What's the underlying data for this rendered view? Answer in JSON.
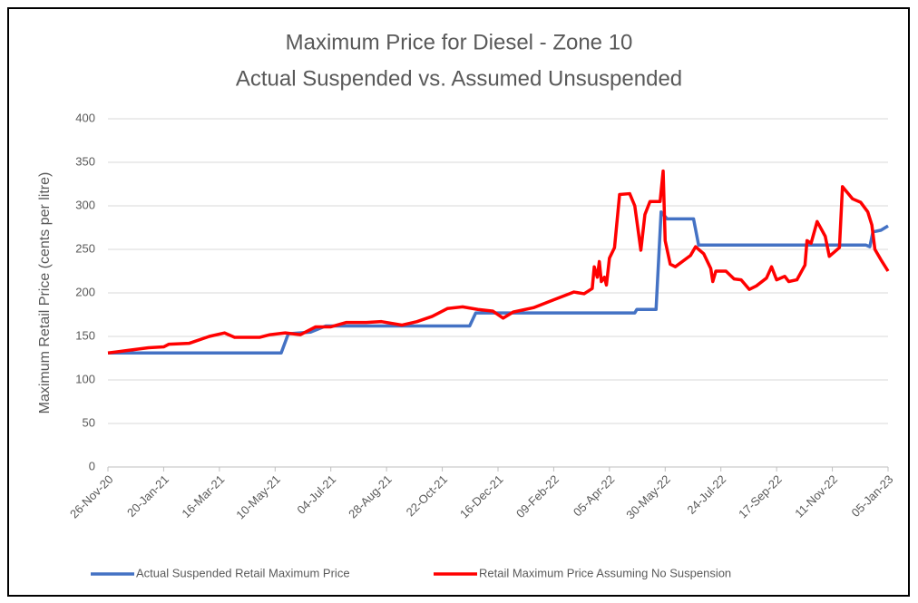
{
  "chart_data": {
    "type": "line",
    "title": "Maximum Price for Diesel - Zone 10",
    "subtitle": "Actual Suspended vs. Assumed Unsuspended",
    "y_label": "Maximum Retail Price (cents per litre)",
    "ylim": [
      0,
      400
    ],
    "yticks": [
      0,
      50,
      100,
      150,
      200,
      250,
      300,
      350,
      400
    ],
    "grid": true,
    "legend": "bottom",
    "xlim": [
      "2020-11-26",
      "2023-01-05"
    ],
    "xticks": [
      {
        "value": "2020-11-26",
        "label": "26-Nov-20"
      },
      {
        "value": "2021-01-20",
        "label": "20-Jan-21"
      },
      {
        "value": "2021-03-16",
        "label": "16-Mar-21"
      },
      {
        "value": "2021-05-10",
        "label": "10-May-21"
      },
      {
        "value": "2021-07-04",
        "label": "04-Jul-21"
      },
      {
        "value": "2021-08-28",
        "label": "28-Aug-21"
      },
      {
        "value": "2021-10-22",
        "label": "22-Oct-21"
      },
      {
        "value": "2021-12-16",
        "label": "16-Dec-21"
      },
      {
        "value": "2022-02-09",
        "label": "09-Feb-22"
      },
      {
        "value": "2022-04-05",
        "label": "05-Apr-22"
      },
      {
        "value": "2022-05-30",
        "label": "30-May-22"
      },
      {
        "value": "2022-07-24",
        "label": "24-Jul-22"
      },
      {
        "value": "2022-09-17",
        "label": "17-Sep-22"
      },
      {
        "value": "2022-11-11",
        "label": "11-Nov-22"
      },
      {
        "value": "2023-01-05",
        "label": "05-Jan-23"
      }
    ],
    "series": [
      {
        "name": "Actual Suspended Retail Maximum Price",
        "color": "#4472c4",
        "x": [
          "2020-11-26",
          "2021-05-16",
          "2021-05-23",
          "2021-06-14",
          "2021-06-29",
          "2021-11-18",
          "2021-11-24",
          "2022-04-30",
          "2022-05-02",
          "2022-05-21",
          "2022-05-26",
          "2022-06-01",
          "2022-06-27",
          "2022-07-02",
          "2022-12-14",
          "2022-12-18",
          "2022-12-21",
          "2022-12-29",
          "2023-01-05"
        ],
        "values": [
          131,
          131,
          153,
          155,
          162,
          162,
          177,
          177,
          181,
          181,
          293,
          285,
          285,
          255,
          255,
          253,
          270,
          272,
          277
        ]
      },
      {
        "name": "Retail Maximum Price Assuming No Suspension",
        "color": "#ff0000",
        "x": [
          "2020-11-26",
          "2020-12-16",
          "2021-01-05",
          "2021-01-20",
          "2021-01-25",
          "2021-02-14",
          "2021-03-06",
          "2021-03-21",
          "2021-03-31",
          "2021-04-25",
          "2021-05-05",
          "2021-05-20",
          "2021-06-04",
          "2021-06-19",
          "2021-07-04",
          "2021-07-19",
          "2021-08-08",
          "2021-08-23",
          "2021-09-12",
          "2021-09-27",
          "2021-10-12",
          "2021-10-27",
          "2021-11-11",
          "2021-11-26",
          "2021-12-11",
          "2021-12-21",
          "2021-12-31",
          "2022-01-20",
          "2022-02-09",
          "2022-03-01",
          "2022-03-11",
          "2022-03-19",
          "2022-03-21",
          "2022-03-24",
          "2022-03-26",
          "2022-03-28",
          "2022-03-31",
          "2022-04-02",
          "2022-04-05",
          "2022-04-10",
          "2022-04-15",
          "2022-04-25",
          "2022-04-30",
          "2022-05-06",
          "2022-05-10",
          "2022-05-15",
          "2022-05-25",
          "2022-05-28",
          "2022-05-30",
          "2022-06-04",
          "2022-06-09",
          "2022-06-24",
          "2022-06-29",
          "2022-07-07",
          "2022-07-14",
          "2022-07-16",
          "2022-07-19",
          "2022-07-29",
          "2022-08-06",
          "2022-08-13",
          "2022-08-21",
          "2022-08-28",
          "2022-09-07",
          "2022-09-12",
          "2022-09-17",
          "2022-09-25",
          "2022-09-29",
          "2022-10-07",
          "2022-10-15",
          "2022-10-17",
          "2022-10-21",
          "2022-10-27",
          "2022-11-04",
          "2022-11-08",
          "2022-11-14",
          "2022-11-18",
          "2022-11-21",
          "2022-12-01",
          "2022-12-09",
          "2022-12-16",
          "2022-12-20",
          "2022-12-23",
          "2022-12-29",
          "2023-01-05"
        ],
        "values": [
          131,
          134,
          137,
          138,
          141,
          142,
          150,
          154,
          149,
          149,
          152,
          154,
          152,
          161,
          161,
          166,
          166,
          167,
          163,
          167,
          173,
          182,
          184,
          181,
          179,
          171,
          178,
          183,
          192,
          201,
          199,
          205,
          230,
          218,
          236,
          213,
          218,
          209,
          240,
          252,
          313,
          314,
          300,
          249,
          290,
          305,
          305,
          340,
          260,
          233,
          230,
          243,
          253,
          245,
          228,
          213,
          225,
          225,
          216,
          215,
          204,
          208,
          217,
          230,
          215,
          219,
          213,
          215,
          232,
          260,
          257,
          282,
          265,
          242,
          248,
          252,
          322,
          308,
          304,
          293,
          278,
          250,
          238,
          225
        ]
      }
    ]
  }
}
